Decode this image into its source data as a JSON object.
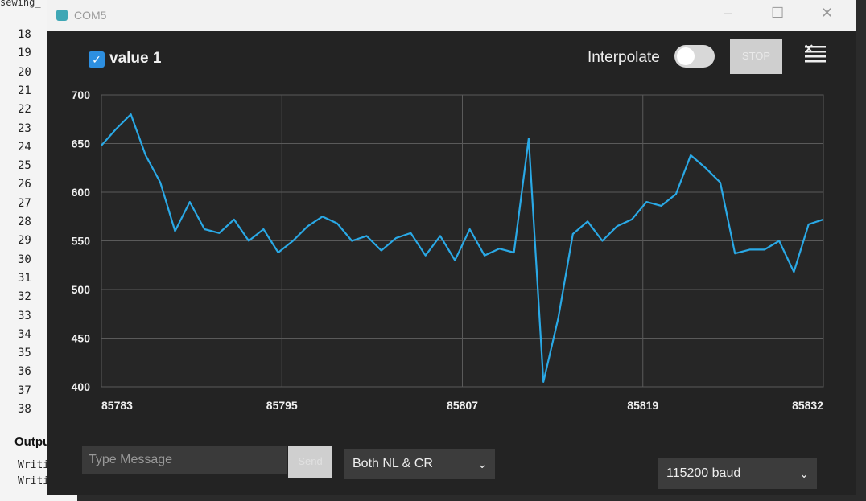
{
  "editor": {
    "file_tab": "sewing_",
    "line_numbers": [
      "18",
      "19",
      "20",
      "21",
      "22",
      "23",
      "24",
      "25",
      "26",
      "27",
      "28",
      "29",
      "30",
      "31",
      "32",
      "33",
      "34",
      "35",
      "36",
      "37",
      "38"
    ],
    "output_tab": "Output",
    "output_lines": [
      "Writi",
      "Writi"
    ]
  },
  "window": {
    "title": "COM5",
    "minimize": "–",
    "maximize": "☐",
    "close": "✕"
  },
  "toolbar": {
    "series_label": "value 1",
    "series_checked": true,
    "interpolate_label": "Interpolate",
    "interpolate_on": true,
    "stop_label": "STOP",
    "menu_icon": "clear-list-icon"
  },
  "colors": {
    "line": "#2aa9e6",
    "checkbox": "#2d8fe0",
    "grid": "#5a5a5a"
  },
  "chart_data": {
    "type": "line",
    "ylim": [
      400,
      700
    ],
    "yticks": [
      "400",
      "450",
      "500",
      "550",
      "600",
      "650",
      "700"
    ],
    "xticks": [
      "85783",
      "85795",
      "85807",
      "85819",
      "85832"
    ],
    "series": [
      {
        "name": "value 1",
        "values": [
          648,
          665,
          680,
          638,
          610,
          560,
          590,
          562,
          558,
          572,
          550,
          562,
          538,
          550,
          565,
          575,
          568,
          550,
          555,
          540,
          553,
          558,
          535,
          555,
          530,
          562,
          535,
          542,
          538,
          655,
          405,
          470,
          557,
          570,
          550,
          565,
          572,
          590,
          586,
          598,
          638,
          625,
          610,
          537,
          541,
          541,
          550,
          518,
          567,
          572
        ]
      }
    ]
  },
  "bottom": {
    "message_placeholder": "Type Message",
    "send_label": "Send",
    "line_ending": "Both NL & CR",
    "baud": "115200 baud"
  }
}
